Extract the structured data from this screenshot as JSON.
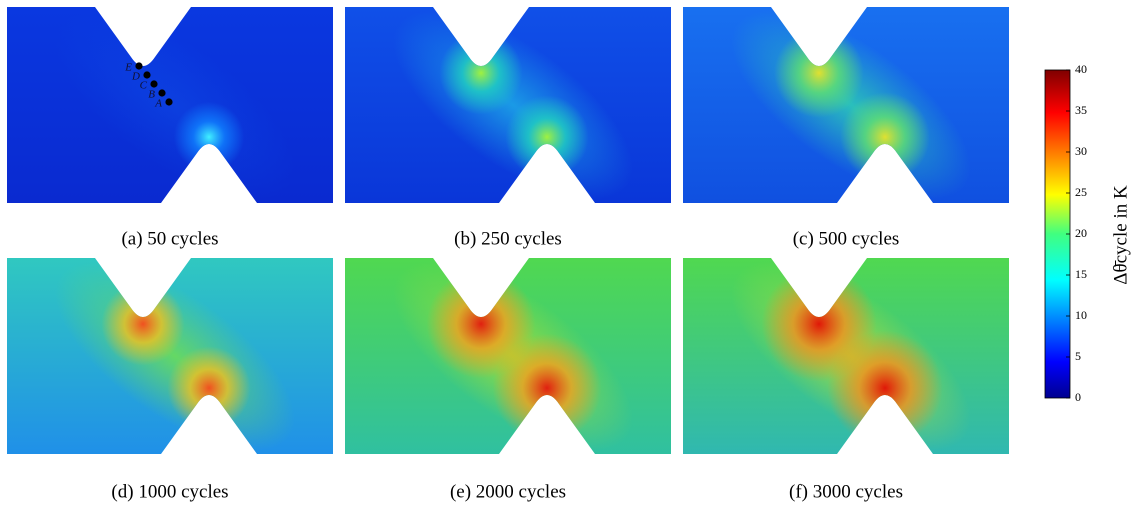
{
  "panels": [
    {
      "caption": "(a) 50 cycles",
      "points": [
        "A",
        "B",
        "C",
        "D",
        "E"
      ]
    },
    {
      "caption": "(b) 250 cycles"
    },
    {
      "caption": "(c) 500 cycles"
    },
    {
      "caption": "(d) 1000 cycles"
    },
    {
      "caption": "(e) 2000 cycles"
    },
    {
      "caption": "(f) 3000 cycles"
    }
  ],
  "colorbar": {
    "label": "Δθ̄cycle in K",
    "lim": [
      0,
      40
    ],
    "ticks": [
      0,
      5,
      10,
      15,
      20,
      25,
      30,
      35,
      40
    ]
  }
}
